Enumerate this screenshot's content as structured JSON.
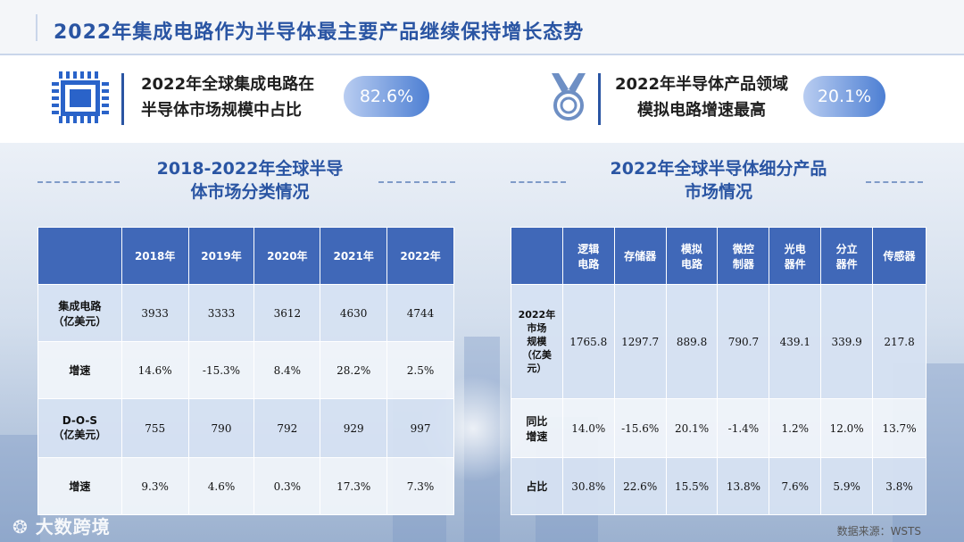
{
  "title": "2022年集成电路作为半导体最主要产品继续保持增长态势",
  "kpis": [
    {
      "line1": "2022年全球集成电路在",
      "line2": "半导体市场规模中占比",
      "value": "82.6%",
      "icon": "chip-icon"
    },
    {
      "line1": "2022年半导体产品领域",
      "line2": "模拟电路增速最高",
      "value": "20.1%",
      "icon": "medal-icon"
    }
  ],
  "left_section": {
    "title_line1": "2018-2022年全球半导",
    "title_line2": "体市场分类情况",
    "columns": [
      "2018年",
      "2019年",
      "2020年",
      "2021年",
      "2022年"
    ],
    "rows": [
      {
        "head1": "集成电路",
        "head2": "（亿美元）",
        "values": [
          "3933",
          "3333",
          "3612",
          "4630",
          "4744"
        ]
      },
      {
        "head1": "增速",
        "head2": "",
        "values": [
          "14.6%",
          "-15.3%",
          "8.4%",
          "28.2%",
          "2.5%"
        ]
      },
      {
        "head1": "D-O-S",
        "head2": "（亿美元）",
        "values": [
          "755",
          "790",
          "792",
          "929",
          "997"
        ]
      },
      {
        "head1": "增速",
        "head2": "",
        "values": [
          "9.3%",
          "4.6%",
          "0.3%",
          "17.3%",
          "7.3%"
        ]
      }
    ]
  },
  "right_section": {
    "title_line1": "2022年全球半导体细分产品",
    "title_line2": "市场情况",
    "columns": [
      {
        "l1": "逻辑",
        "l2": "电路"
      },
      {
        "l1": "存储器",
        "l2": ""
      },
      {
        "l1": "模拟",
        "l2": "电路"
      },
      {
        "l1": "微控",
        "l2": "制器"
      },
      {
        "l1": "光电",
        "l2": "器件"
      },
      {
        "l1": "分立",
        "l2": "器件"
      },
      {
        "l1": "传感器",
        "l2": ""
      }
    ],
    "rows": [
      {
        "heads": [
          "2022年",
          "市场",
          "规模",
          "（亿美",
          "元）"
        ],
        "values": [
          "1765.8",
          "1297.7",
          "889.8",
          "790.7",
          "439.1",
          "339.9",
          "217.8"
        ]
      },
      {
        "heads": [
          "同比",
          "增速"
        ],
        "values": [
          "14.0%",
          "-15.6%",
          "20.1%",
          "-1.4%",
          "1.2%",
          "12.0%",
          "13.7%"
        ]
      },
      {
        "heads": [
          "占比"
        ],
        "values": [
          "30.8%",
          "22.6%",
          "15.5%",
          "13.8%",
          "7.6%",
          "5.9%",
          "3.8%"
        ]
      }
    ]
  },
  "watermark": "大数跨境",
  "source": "数据来源：WSTS",
  "colors": {
    "accent": "#2a55a3",
    "header": "#4068b8"
  }
}
